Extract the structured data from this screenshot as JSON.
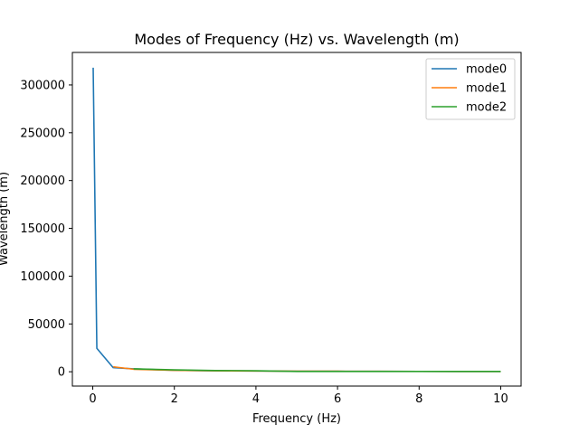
{
  "chart_data": {
    "type": "line",
    "title": "Modes of Frequency (Hz) vs. Wavelength (m)",
    "xlabel": "Frequency (Hz)",
    "ylabel": "Wavelength (m)",
    "xlim": [
      -0.5,
      10.5
    ],
    "ylim": [
      -15000,
      334000
    ],
    "xticks": [
      0,
      2,
      4,
      6,
      8,
      10
    ],
    "yticks": [
      0,
      50000,
      100000,
      150000,
      200000,
      250000,
      300000
    ],
    "grid": false,
    "legend_position": "top-right",
    "series": [
      {
        "name": "mode0",
        "color": "#1f77b4",
        "x": [
          0.01,
          0.1,
          0.5,
          1,
          2,
          3,
          4,
          5,
          6,
          7,
          8,
          9,
          10
        ],
        "y": [
          318000,
          24500,
          4300,
          3000,
          1500,
          1000,
          750,
          600,
          500,
          430,
          375,
          333,
          300
        ]
      },
      {
        "name": "mode1",
        "color": "#ff7f0e",
        "x": [
          0.5,
          1,
          2,
          3,
          4,
          5,
          6,
          7,
          8,
          9,
          10
        ],
        "y": [
          5200,
          2600,
          1500,
          1000,
          750,
          600,
          500,
          430,
          375,
          333,
          300
        ]
      },
      {
        "name": "mode2",
        "color": "#2ca02c",
        "x": [
          1,
          2,
          3,
          4,
          5,
          6,
          7,
          8,
          9,
          10
        ],
        "y": [
          3000,
          2000,
          1300,
          1000,
          300,
          300,
          300,
          300,
          300,
          300
        ]
      }
    ]
  }
}
